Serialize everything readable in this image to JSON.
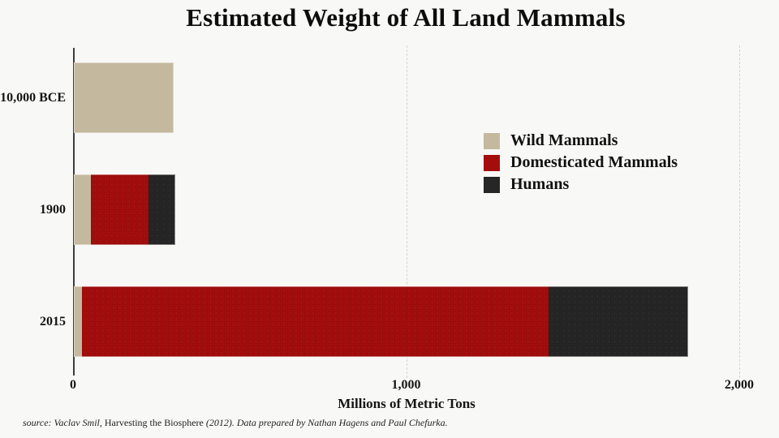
{
  "title": "Estimated Weight of All Land Mammals",
  "chart_data": {
    "type": "bar",
    "orientation": "horizontal",
    "stacked": true,
    "title": "Estimated Weight of All Land Mammals",
    "categories": [
      "10,000 BCE",
      "1900",
      "2015"
    ],
    "series": [
      {
        "name": "Wild Mammals",
        "key": "wild",
        "color": "#c4b99e",
        "values": [
          300,
          50,
          25
        ]
      },
      {
        "name": "Domesticated Mammals",
        "key": "domesticated",
        "color": "#a50d0d",
        "values": [
          0,
          175,
          1400
        ]
      },
      {
        "name": "Humans",
        "key": "humans",
        "color": "#262626",
        "values": [
          0,
          80,
          420
        ]
      }
    ],
    "totals": [
      300,
      305,
      1845
    ],
    "xlabel": "Millions of Metric Tons",
    "units": "millions of metric tons",
    "xlim": [
      0,
      2000
    ],
    "xticks": [
      0,
      1000,
      2000
    ],
    "xtick_labels": [
      "0",
      "1,000",
      "2,000"
    ],
    "gridline_ticks": [
      1000,
      2000
    ],
    "grid_style": "vertical-dashed",
    "legend_position": "middle-right"
  },
  "source": {
    "prefix_italic": "source: Vaclav Smil, ",
    "book_roman": "Harvesting the Biosphere",
    "suffix_italic": " (2012). Data prepared by Nathan Hagens and Paul Chefurka."
  },
  "colors": {
    "background": "#f8f8f6",
    "axis_line": "#3d3d3d",
    "gridline": "#d3d3cf",
    "text": "#141414"
  }
}
